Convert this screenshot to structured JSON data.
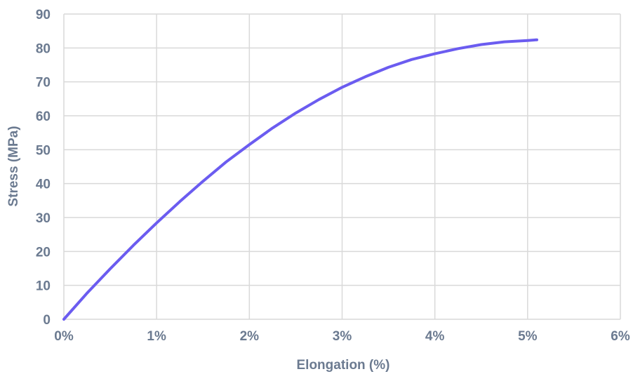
{
  "colors": {
    "line": "#6B5CF0",
    "grid": "#D9D9D9",
    "text": "#6B7A90"
  },
  "chart_data": {
    "type": "line",
    "title": "",
    "xlabel": "Elongation (%)",
    "ylabel": "Stress (MPa)",
    "xlim": [
      0,
      6
    ],
    "ylim": [
      0,
      90
    ],
    "x_ticks": [
      0,
      1,
      2,
      3,
      4,
      5,
      6
    ],
    "x_tick_labels": [
      "0%",
      "1%",
      "2%",
      "3%",
      "4%",
      "5%",
      "6%"
    ],
    "y_ticks": [
      0,
      10,
      20,
      30,
      40,
      50,
      60,
      70,
      80,
      90
    ],
    "y_tick_labels": [
      "0",
      "10",
      "20",
      "30",
      "40",
      "50",
      "60",
      "70",
      "80",
      "90"
    ],
    "grid": true,
    "legend": "none",
    "series": [
      {
        "x": [
          0,
          0.25,
          0.5,
          0.75,
          1.0,
          1.25,
          1.5,
          1.75,
          2.0,
          2.25,
          2.5,
          2.75,
          3.0,
          3.25,
          3.5,
          3.75,
          4.0,
          4.25,
          4.5,
          4.75,
          5.0,
          5.1
        ],
        "y": [
          0,
          7.7,
          14.9,
          21.8,
          28.4,
          34.7,
          40.7,
          46.4,
          51.5,
          56.4,
          60.8,
          64.8,
          68.4,
          71.5,
          74.3,
          76.6,
          78.3,
          79.8,
          81.0,
          81.8,
          82.2,
          82.4
        ]
      }
    ]
  }
}
